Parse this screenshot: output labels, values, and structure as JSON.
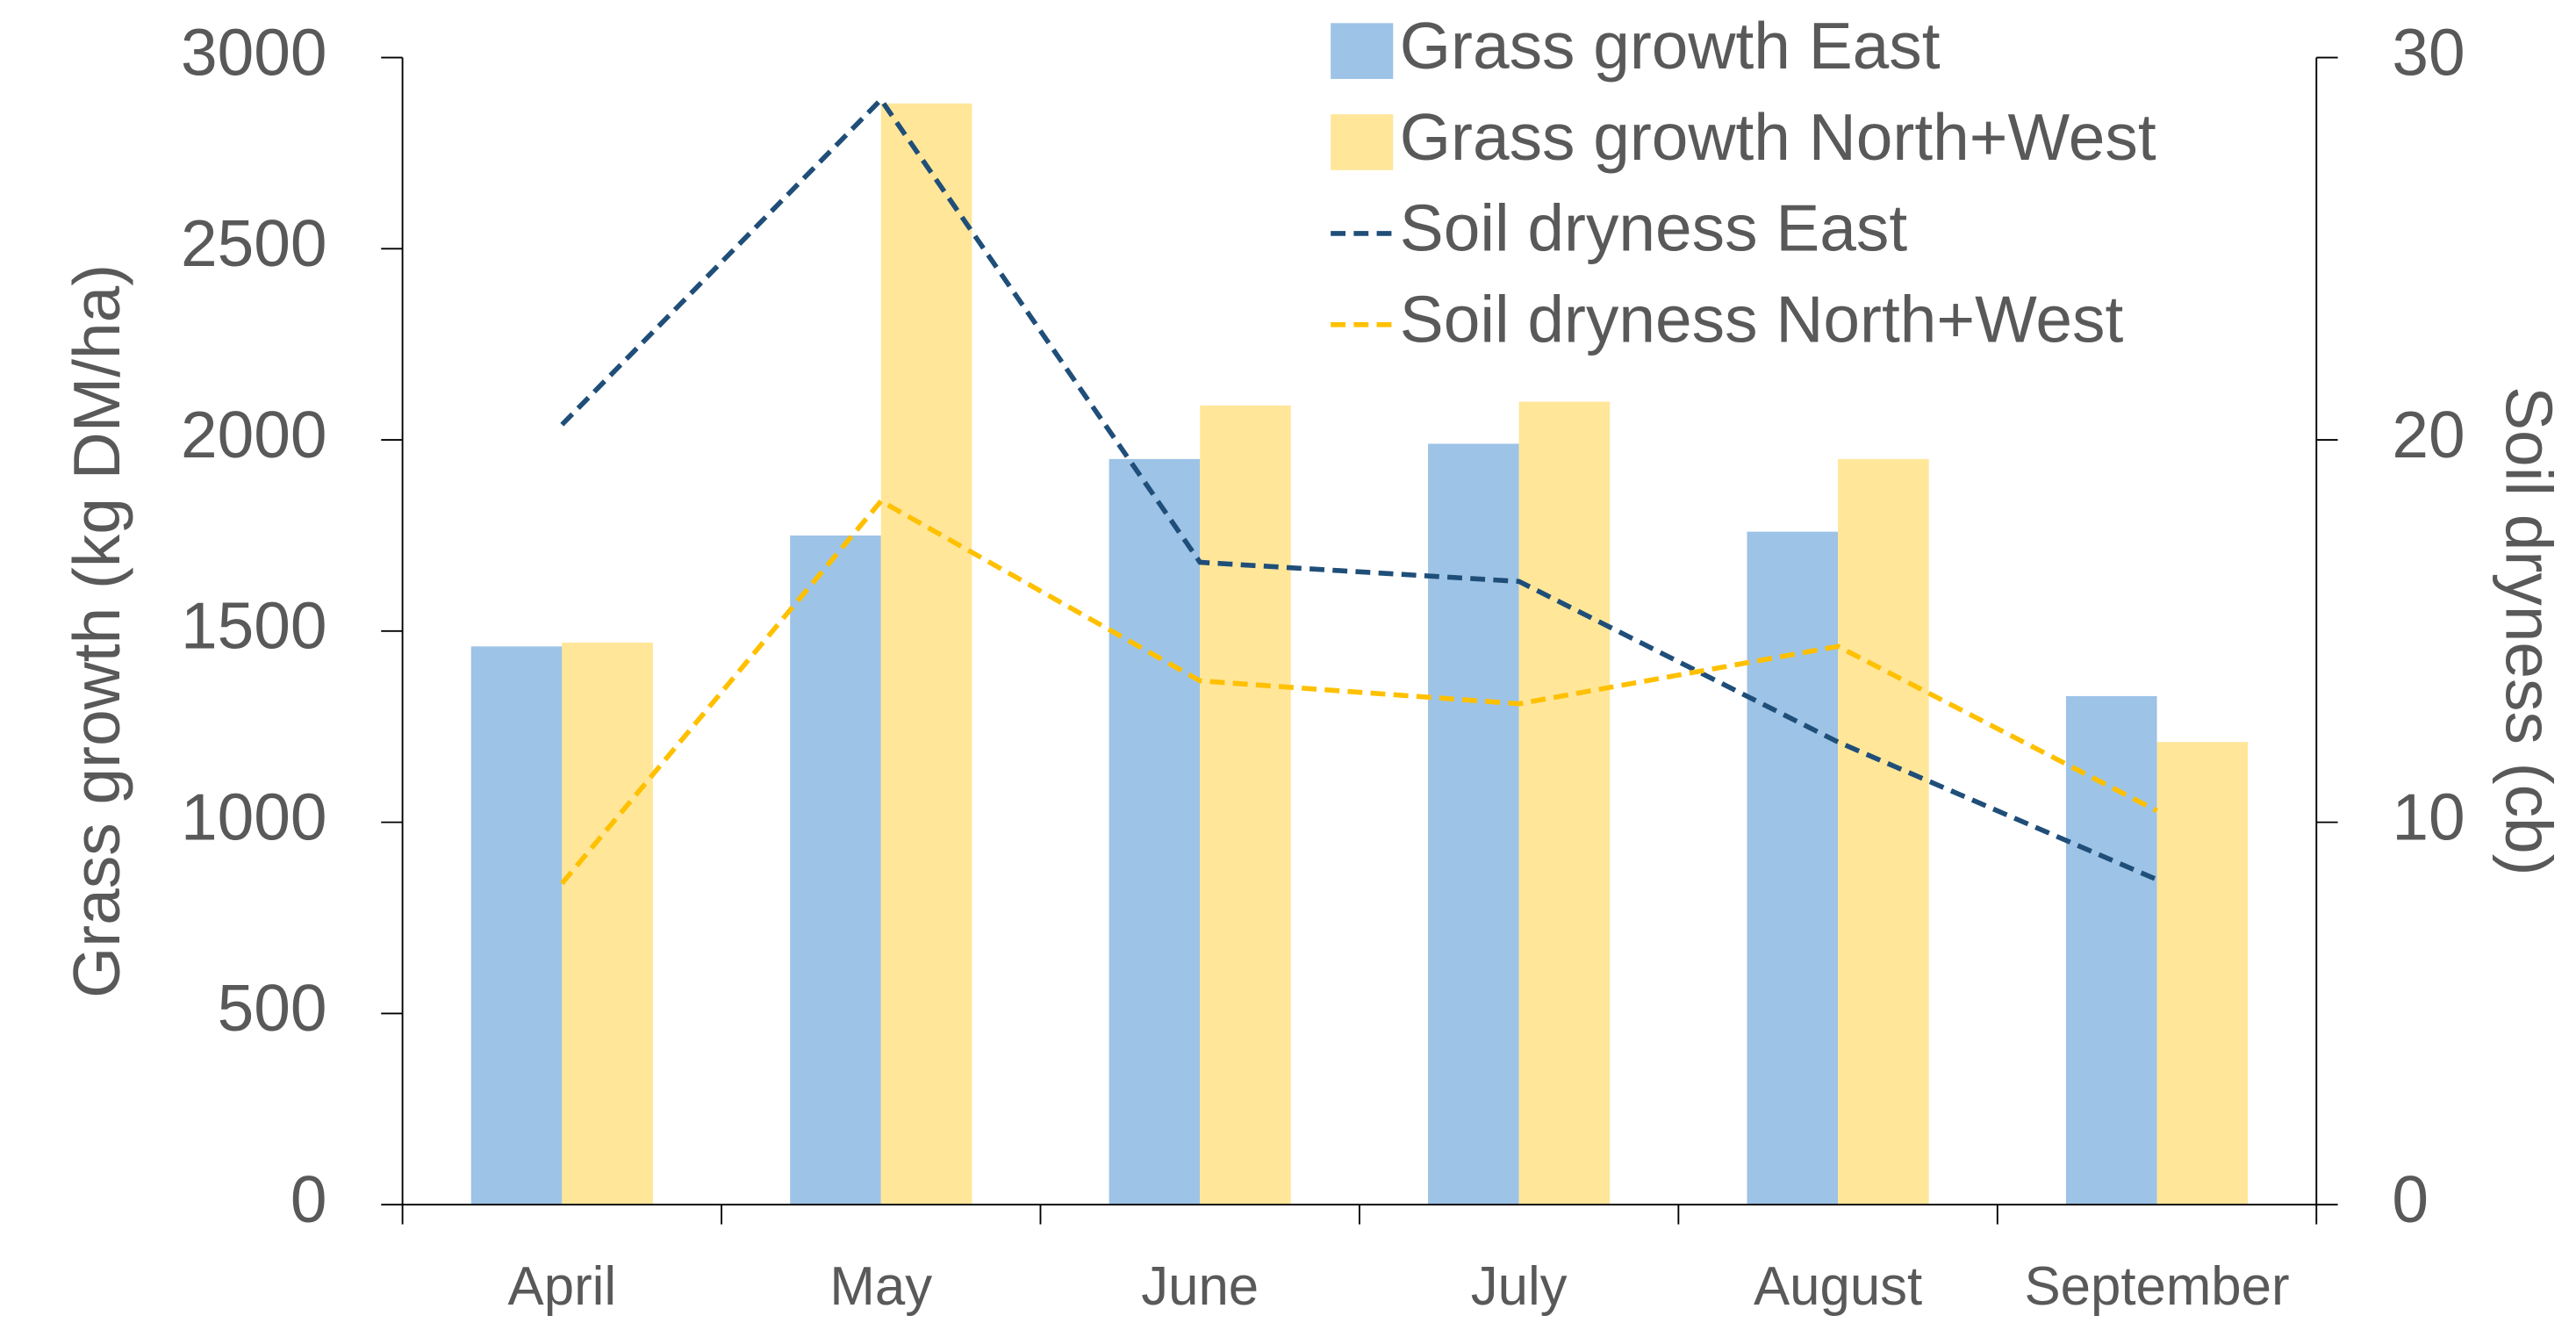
{
  "chart_data": {
    "type": "bar",
    "categories": [
      "April",
      "May",
      "June",
      "July",
      "August",
      "September"
    ],
    "ylabel": "Grass growth (kg DM/ha)",
    "y2label": "Soil dryness (cb)",
    "ylim": [
      0,
      3000
    ],
    "yticks": [
      0,
      500,
      1000,
      1500,
      2000,
      2500,
      3000
    ],
    "y2lim": [
      0,
      30
    ],
    "y2ticks": [
      0,
      10,
      20,
      30
    ],
    "grid": false,
    "legend": "upper right",
    "series": [
      {
        "name": "Grass growth East",
        "type": "bar",
        "color": "#9dc3e6",
        "values": [
          1460,
          1750,
          1950,
          1990,
          1760,
          1330
        ]
      },
      {
        "name": "Grass growth North+West",
        "type": "bar",
        "color": "#ffe699",
        "values": [
          1470,
          2880,
          2090,
          2100,
          1950,
          1210
        ]
      },
      {
        "name": "Soil dryness East",
        "type": "line",
        "axis": "y2",
        "color": "#1f4e79",
        "linestyle": "dashed",
        "values": [
          20.4,
          28.9,
          16.8,
          16.3,
          12.1,
          8.5
        ]
      },
      {
        "name": "Soil dryness North+West",
        "type": "line",
        "axis": "y2",
        "color": "#ffc000",
        "linestyle": "dashed",
        "values": [
          8.4,
          18.4,
          13.7,
          13.1,
          14.6,
          10.3
        ]
      }
    ]
  }
}
